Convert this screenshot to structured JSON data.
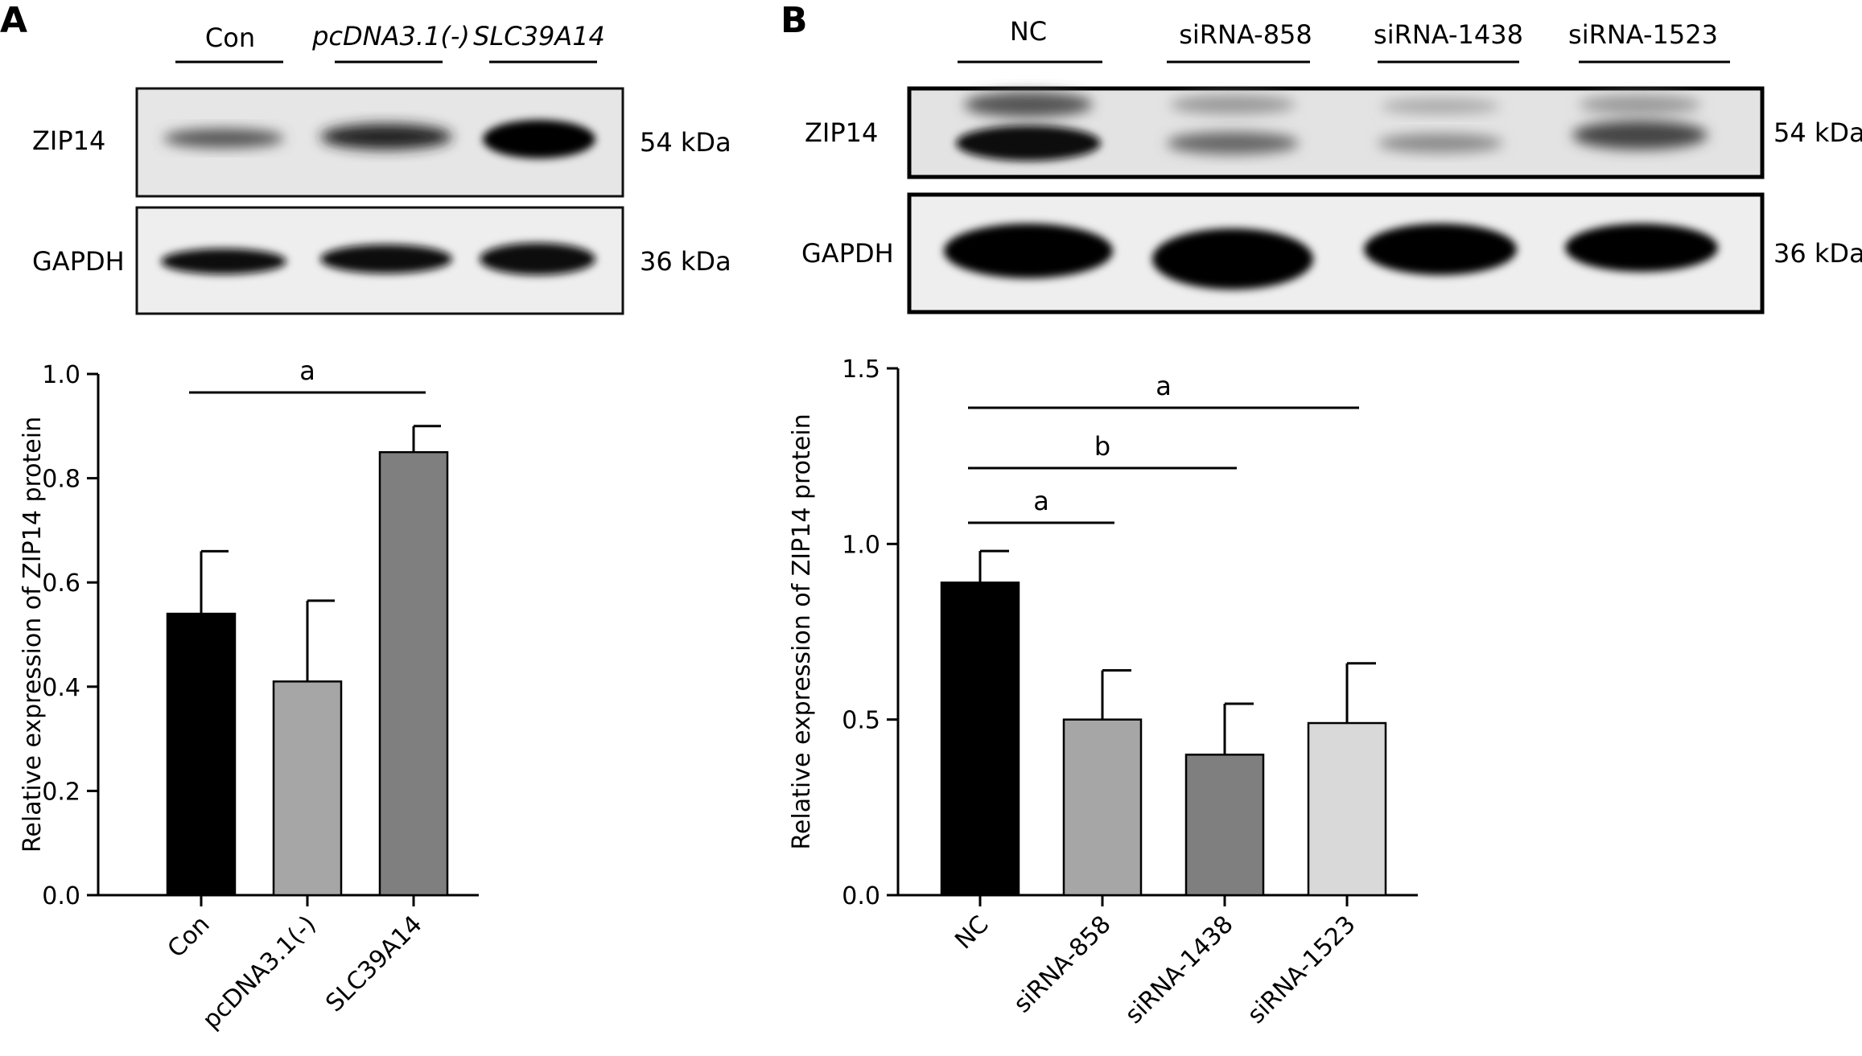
{
  "panels": {
    "A": {
      "letter": "A",
      "blot": {
        "lanes": [
          "Con",
          "pcDNA3.1(-)",
          "SLC39A14"
        ],
        "rows": [
          {
            "name": "ZIP14",
            "kda": "54 kDa"
          },
          {
            "name": "GAPDH",
            "kda": "36 kDa"
          }
        ]
      },
      "significance": [
        {
          "label": "a",
          "from": "Con",
          "to": "SLC39A14"
        }
      ]
    },
    "B": {
      "letter": "B",
      "blot": {
        "lanes": [
          "NC",
          "siRNA-858",
          "siRNA-1438",
          "siRNA-1523"
        ],
        "rows": [
          {
            "name": "ZIP14",
            "kda": "54 kDa"
          },
          {
            "name": "GAPDH",
            "kda": "36 kDa"
          }
        ]
      },
      "significance": [
        {
          "label": "a",
          "from": "NC",
          "to": "siRNA-1523"
        },
        {
          "label": "b",
          "from": "NC",
          "to": "siRNA-1438"
        },
        {
          "label": "a",
          "from": "NC",
          "to": "siRNA-858"
        }
      ]
    }
  },
  "chart_data": [
    {
      "type": "bar",
      "panel": "A",
      "categories": [
        "Con",
        "pcDNA3.1(-)",
        "SLC39A14"
      ],
      "values": [
        0.54,
        0.41,
        0.85
      ],
      "errors": [
        0.12,
        0.155,
        0.05
      ],
      "colors": [
        "#000000",
        "#a6a6a6",
        "#7f7f7f"
      ],
      "xlabel": "",
      "ylabel": "Relative expression of ZIP14 protein",
      "ylim": [
        0,
        1.0
      ],
      "yticks": [
        "0.0",
        "0.2",
        "0.4",
        "0.6",
        "0.8",
        "1.0"
      ]
    },
    {
      "type": "bar",
      "panel": "B",
      "categories": [
        "NC",
        "siRNA-858",
        "siRNA-1438",
        "siRNA-1523"
      ],
      "values": [
        0.89,
        0.5,
        0.4,
        0.49
      ],
      "errors": [
        0.09,
        0.14,
        0.145,
        0.17
      ],
      "colors": [
        "#000000",
        "#a6a6a6",
        "#7f7f7f",
        "#d9d9d9"
      ],
      "xlabel": "",
      "ylabel": "Relative expression of ZIP14 protein",
      "ylim": [
        0,
        1.5
      ],
      "yticks": [
        "0.0",
        "0.5",
        "1.0",
        "1.5"
      ]
    }
  ]
}
